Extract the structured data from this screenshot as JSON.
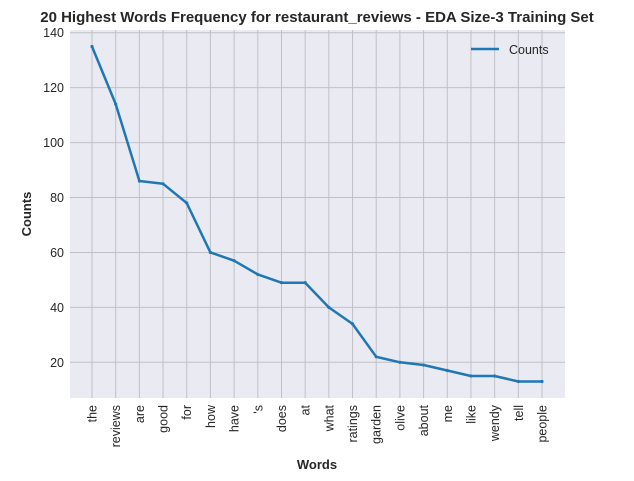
{
  "chart_data": {
    "type": "line",
    "title": "20 Highest Words Frequency for restaurant_reviews - EDA Size-3 Training Set",
    "xlabel": "Words",
    "ylabel": "Counts",
    "categories": [
      "the",
      "reviews",
      "are",
      "good",
      "for",
      "how",
      "have",
      "'s",
      "does",
      "at",
      "what",
      "ratings",
      "garden",
      "olive",
      "about",
      "me",
      "like",
      "wendy",
      "tell",
      "people"
    ],
    "series": [
      {
        "name": "Counts",
        "color": "#1f77b4",
        "values": [
          135,
          114,
          86,
          85,
          78,
          60,
          57,
          52,
          49,
          49,
          40,
          34,
          22,
          20,
          19,
          17,
          15,
          15,
          13,
          13
        ]
      }
    ],
    "ylim": [
      7,
      141
    ],
    "yticks": [
      20,
      40,
      60,
      80,
      100,
      120,
      140
    ],
    "grid": true,
    "legend": "top-right",
    "background": "#eaeaf2"
  }
}
